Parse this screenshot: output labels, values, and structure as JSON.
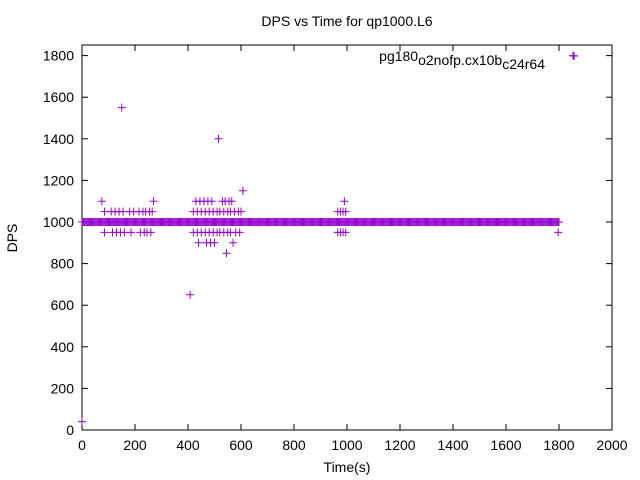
{
  "chart_data": {
    "type": "scatter",
    "title": "DPS vs Time for qp1000.L6",
    "xlabel": "Time(s)",
    "ylabel": "DPS",
    "xlim": [
      0,
      2000
    ],
    "ylim": [
      0,
      1900
    ],
    "xticks": [
      0,
      200,
      400,
      600,
      800,
      1000,
      1200,
      1400,
      1600,
      1800,
      2000
    ],
    "yticks": [
      0,
      200,
      400,
      600,
      800,
      1000,
      1200,
      1400,
      1600,
      1800
    ],
    "grid": false,
    "legend_position": "top-right",
    "marker": "+",
    "color": "#9400d3",
    "series": [
      {
        "name": "pg180_o2nofp.cx10b_c24r64",
        "legend_parts": [
          {
            "text": "pg180",
            "sub": false
          },
          {
            "text": "o",
            "sub": true
          },
          {
            "text": "2nofp.cx10b",
            "sub": false
          },
          {
            "text": "c",
            "sub": true
          },
          {
            "text": "24r64",
            "sub": false
          }
        ],
        "baseline": {
          "y": 1000,
          "x_from": 0,
          "x_to": 1800,
          "step": 4
        },
        "points": [
          [
            0,
            40
          ],
          [
            150,
            1550
          ],
          [
            515,
            1400
          ],
          [
            408,
            650
          ],
          [
            1853,
            1800
          ],
          [
            607,
            1150
          ],
          [
            1797,
            950
          ],
          [
            75,
            1100
          ],
          [
            85,
            1050
          ],
          [
            85,
            950
          ],
          [
            110,
            1050
          ],
          [
            115,
            950
          ],
          [
            125,
            1050
          ],
          [
            130,
            950
          ],
          [
            140,
            1050
          ],
          [
            145,
            950
          ],
          [
            155,
            1050
          ],
          [
            160,
            950
          ],
          [
            180,
            1050
          ],
          [
            185,
            950
          ],
          [
            195,
            1050
          ],
          [
            215,
            1050
          ],
          [
            220,
            950
          ],
          [
            230,
            1050
          ],
          [
            235,
            950
          ],
          [
            240,
            1050
          ],
          [
            245,
            950
          ],
          [
            255,
            1050
          ],
          [
            260,
            950
          ],
          [
            265,
            1050
          ],
          [
            270,
            1100
          ],
          [
            420,
            1050
          ],
          [
            420,
            950
          ],
          [
            430,
            1100
          ],
          [
            435,
            1050
          ],
          [
            435,
            950
          ],
          [
            440,
            900
          ],
          [
            445,
            1100
          ],
          [
            450,
            1050
          ],
          [
            450,
            950
          ],
          [
            460,
            1100
          ],
          [
            465,
            1050
          ],
          [
            465,
            950
          ],
          [
            470,
            900
          ],
          [
            475,
            1100
          ],
          [
            480,
            1050
          ],
          [
            480,
            950
          ],
          [
            485,
            900
          ],
          [
            490,
            1100
          ],
          [
            495,
            1050
          ],
          [
            495,
            950
          ],
          [
            500,
            900
          ],
          [
            510,
            1050
          ],
          [
            510,
            950
          ],
          [
            520,
            1050
          ],
          [
            520,
            950
          ],
          [
            530,
            1100
          ],
          [
            535,
            1050
          ],
          [
            535,
            950
          ],
          [
            540,
            1100
          ],
          [
            545,
            850
          ],
          [
            550,
            1050
          ],
          [
            550,
            950
          ],
          [
            555,
            1100
          ],
          [
            560,
            1050
          ],
          [
            560,
            950
          ],
          [
            565,
            1100
          ],
          [
            570,
            900
          ],
          [
            575,
            1050
          ],
          [
            580,
            950
          ],
          [
            590,
            1050
          ],
          [
            595,
            950
          ],
          [
            600,
            1050
          ],
          [
            965,
            1050
          ],
          [
            965,
            950
          ],
          [
            975,
            1050
          ],
          [
            975,
            950
          ],
          [
            985,
            1050
          ],
          [
            985,
            950
          ],
          [
            990,
            1100
          ],
          [
            995,
            1050
          ],
          [
            995,
            950
          ]
        ]
      }
    ]
  }
}
